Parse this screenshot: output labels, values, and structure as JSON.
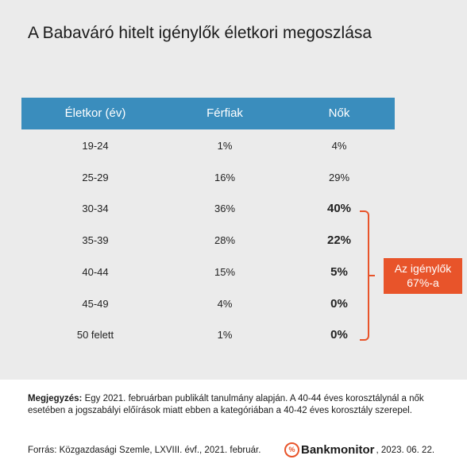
{
  "title": "A Babaváró hitelt igénylők életkori megoszlása",
  "chart_data": {
    "type": "table",
    "columns": [
      "Életkor (év)",
      "Férfiak",
      "Nők"
    ],
    "rows": [
      {
        "age": "19-24",
        "men": "1%",
        "women": "4%",
        "men_value": 1,
        "women_value": 4
      },
      {
        "age": "25-29",
        "men": "16%",
        "women": "29%",
        "men_value": 16,
        "women_value": 29
      },
      {
        "age": "30-34",
        "men": "36%",
        "women": "40%",
        "men_value": 36,
        "women_value": 40
      },
      {
        "age": "35-39",
        "men": "28%",
        "women": "22%",
        "men_value": 28,
        "women_value": 22
      },
      {
        "age": "40-44",
        "men": "15%",
        "women": "5%",
        "men_value": 15,
        "women_value": 5
      },
      {
        "age": "45-49",
        "men": "4%",
        "women": "0%",
        "men_value": 4,
        "women_value": 0
      },
      {
        "age": "50 felett",
        "men": "1%",
        "women": "0%",
        "men_value": 1,
        "women_value": 0
      }
    ],
    "highlighted_rows": [
      2,
      3,
      4,
      5,
      6
    ],
    "annotation": {
      "line1": "Az igénylők",
      "line2": "67%-a"
    }
  },
  "note": {
    "label": "Megjegyzés:",
    "text": " Egy 2021. februárban publikált tanulmány alapján. A 40-44 éves korosztálynál a nők esetében a jogszabályi előírások miatt ebben a kategóriában a 40-42 éves korosztály szerepel."
  },
  "source": "Forrás: Közgazdasági Szemle, LXVIII. évf., 2021. február.",
  "brand": {
    "icon": "%",
    "name": "Bankmonitor",
    "date": ", 2023. 06. 22."
  },
  "colors": {
    "header": "#3a8dbd",
    "accent": "#e8542a",
    "panel": "#ebebeb"
  }
}
